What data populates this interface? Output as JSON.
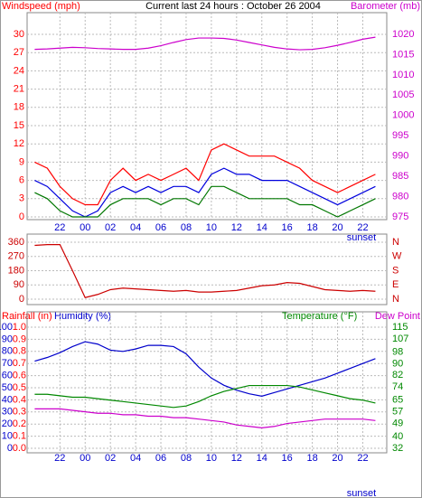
{
  "chart_data": [
    {
      "type": "line",
      "title": "Current last 24 hours : October 26 2004",
      "y_label": "Windspeed (mph)",
      "y_color": "#ff0000",
      "y2_label": "Barometer (mb)",
      "y2_color": "#cc00cc",
      "xlim": [
        19.4,
        47.9
      ],
      "xticks": [
        {
          "value": 22,
          "label": "22"
        },
        {
          "value": 24,
          "label": "00"
        },
        {
          "value": 26,
          "label": "02"
        },
        {
          "value": 28,
          "label": "04"
        },
        {
          "value": 30,
          "label": "06"
        },
        {
          "value": 32,
          "label": "08"
        },
        {
          "value": 34,
          "label": "10"
        },
        {
          "value": 36,
          "label": "12"
        },
        {
          "value": 38,
          "label": "14"
        },
        {
          "value": 40,
          "label": "16"
        },
        {
          "value": 42,
          "label": "18"
        },
        {
          "value": 44,
          "label": "20"
        },
        {
          "value": 46,
          "label": "22"
        }
      ],
      "annotation": "sunset",
      "ylim": [
        0,
        30
      ],
      "yticks": [
        0,
        3,
        6,
        9,
        12,
        15,
        18,
        21,
        24,
        27,
        30
      ],
      "y2lim": [
        975,
        1020
      ],
      "y2ticks": [
        975,
        980,
        985,
        990,
        995,
        1000,
        1005,
        1010,
        1015,
        1020
      ],
      "grid": true,
      "x": [
        20,
        21,
        22,
        23,
        24,
        25,
        26,
        27,
        28,
        29,
        30,
        31,
        32,
        33,
        34,
        35,
        36,
        37,
        38,
        39,
        40,
        41,
        42,
        43,
        44,
        45,
        46,
        47
      ],
      "series": [
        {
          "color": "#ff0000",
          "values": [
            9,
            8,
            5,
            3,
            2,
            2,
            6,
            8,
            6,
            7,
            6,
            7,
            8,
            6,
            11,
            12,
            11,
            10,
            10,
            10,
            9,
            8,
            6,
            5,
            4,
            5,
            6,
            7
          ]
        },
        {
          "color": "#0000dd",
          "values": [
            6,
            5,
            3,
            1,
            0,
            1,
            4,
            5,
            4,
            5,
            4,
            5,
            5,
            4,
            7,
            8,
            7,
            7,
            6,
            6,
            6,
            5,
            4,
            3,
            2,
            3,
            4,
            5
          ]
        },
        {
          "color": "#007700",
          "values": [
            4,
            3,
            1,
            0,
            0,
            0,
            2,
            3,
            3,
            3,
            2,
            3,
            3,
            2,
            5,
            5,
            4,
            3,
            3,
            3,
            3,
            2,
            2,
            1,
            0,
            1,
            2,
            3
          ]
        },
        {
          "color": "#cc00cc",
          "axis": "y2",
          "values": [
            1016.3,
            1016.4,
            1016.6,
            1016.8,
            1016.7,
            1016.5,
            1016.4,
            1016.3,
            1016.3,
            1016.6,
            1017.2,
            1018,
            1018.7,
            1019.1,
            1019.1,
            1019,
            1018.6,
            1018,
            1017.4,
            1016.8,
            1016.4,
            1016.2,
            1016.3,
            1016.7,
            1017.3,
            1018,
            1018.8,
            1019.3
          ]
        }
      ]
    },
    {
      "type": "line",
      "y_color": "#cc0000",
      "y2_color": "#cc0000",
      "xlim": [
        19.4,
        47.9
      ],
      "ylim": [
        0,
        360
      ],
      "yticks": [
        0,
        90,
        180,
        270,
        360
      ],
      "y2lim": [
        0,
        360
      ],
      "y2ticks": [
        {
          "value": 360,
          "label": "N"
        },
        {
          "value": 270,
          "label": "W"
        },
        {
          "value": 180,
          "label": "S"
        },
        {
          "value": 90,
          "label": "E"
        },
        {
          "value": 0,
          "label": "N"
        }
      ],
      "grid": true,
      "x": [
        20,
        21,
        22,
        23,
        24,
        25,
        26,
        27,
        28,
        29,
        30,
        31,
        32,
        33,
        34,
        35,
        36,
        37,
        38,
        39,
        40,
        41,
        42,
        43,
        44,
        45,
        46,
        47
      ],
      "series": [
        {
          "color": "#cc0000",
          "values": [
            340,
            345,
            345,
            180,
            10,
            30,
            60,
            70,
            65,
            60,
            55,
            50,
            55,
            45,
            45,
            50,
            55,
            70,
            85,
            90,
            105,
            100,
            80,
            60,
            55,
            50,
            55,
            50
          ]
        }
      ]
    },
    {
      "type": "line",
      "y_label": "Humidity (%)",
      "y_color": "#0000cc",
      "rain_label": "Rainfall (in)",
      "rain_color": "#ff0000",
      "y2_label": "Temperature (°F)",
      "y2_color": "#008800",
      "y3_label": "Dew Point",
      "y3_color": "#cc00cc",
      "xlim": [
        19.4,
        47.9
      ],
      "xticks": [
        {
          "value": 22,
          "label": "22"
        },
        {
          "value": 24,
          "label": "00"
        },
        {
          "value": 26,
          "label": "02"
        },
        {
          "value": 28,
          "label": "04"
        },
        {
          "value": 30,
          "label": "06"
        },
        {
          "value": 32,
          "label": "08"
        },
        {
          "value": 34,
          "label": "10"
        },
        {
          "value": 36,
          "label": "12"
        },
        {
          "value": 38,
          "label": "14"
        },
        {
          "value": 40,
          "label": "16"
        },
        {
          "value": 42,
          "label": "18"
        },
        {
          "value": 44,
          "label": "20"
        },
        {
          "value": 46,
          "label": "22"
        }
      ],
      "annotation": "sunset",
      "ylim": [
        0,
        100
      ],
      "yticks": [
        0,
        10,
        20,
        30,
        40,
        50,
        60,
        70,
        80,
        90,
        100
      ],
      "rainlim": [
        0,
        1
      ],
      "rainticks": [
        {
          "value": 0,
          "label": "0.0"
        },
        0.1,
        0.2,
        0.3,
        0.4,
        0.5,
        0.6,
        0.7,
        0.8,
        0.9,
        {
          "value": 1,
          "label": "1.0"
        }
      ],
      "y2lim": [
        32,
        115
      ],
      "y2ticks": [
        32,
        40,
        49,
        57,
        65,
        74,
        82,
        90,
        98,
        107,
        115
      ],
      "grid": true,
      "x": [
        20,
        21,
        22,
        23,
        24,
        25,
        26,
        27,
        28,
        29,
        30,
        31,
        32,
        33,
        34,
        35,
        36,
        37,
        38,
        39,
        40,
        41,
        42,
        43,
        44,
        45,
        46,
        47
      ],
      "series": [
        {
          "color": "#0000cc",
          "values": [
            72,
            75,
            79,
            84,
            88,
            86,
            81,
            80,
            82,
            85,
            85,
            84,
            78,
            67,
            58,
            52,
            48,
            45,
            43,
            46,
            49,
            52,
            55,
            58,
            62,
            66,
            70,
            74
          ]
        },
        {
          "color": "#008800",
          "axis": "y2",
          "values": [
            69,
            69,
            68,
            67,
            67,
            66,
            65,
            64,
            63,
            62,
            61,
            60,
            61,
            64,
            68,
            71,
            73,
            75,
            75,
            75,
            75,
            74,
            72,
            70,
            68,
            66,
            65,
            63
          ]
        },
        {
          "color": "#cc00cc",
          "axis": "y2",
          "values": [
            59,
            59,
            59,
            58,
            57,
            56,
            56,
            55,
            55,
            54,
            54,
            53,
            53,
            52,
            51,
            50,
            48,
            47,
            46,
            47,
            49,
            50,
            51,
            52,
            52,
            52,
            52,
            51
          ]
        }
      ]
    }
  ]
}
